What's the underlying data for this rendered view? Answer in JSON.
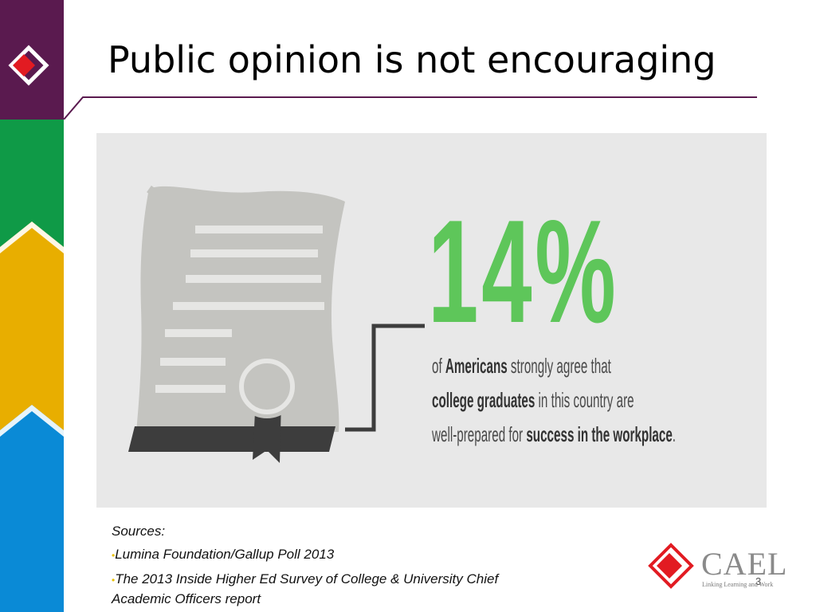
{
  "slide": {
    "title": "Public opinion is not encouraging",
    "number": "3"
  },
  "infographic": {
    "percent": "14%",
    "statement": [
      {
        "text": "of ",
        "bold": false
      },
      {
        "text": "Americans",
        "bold": true
      },
      {
        "text": " strongly agree that",
        "bold": false
      },
      {
        "text": "\n",
        "bold": false
      },
      {
        "text": "college graduates",
        "bold": true
      },
      {
        "text": " in this country are",
        "bold": false
      },
      {
        "text": "\n",
        "bold": false
      },
      {
        "text": "well-prepared for ",
        "bold": false
      },
      {
        "text": "success in the workplace",
        "bold": true
      },
      {
        "text": ".",
        "bold": false
      }
    ],
    "icon": "diploma-scroll-icon"
  },
  "sources": {
    "heading": "Sources:",
    "items": [
      "Lumina Foundation/Gallup Poll 2013",
      "The 2013 Inside Higher Ed Survey of College & University Chief"
    ],
    "continuation": "Academic Officers report"
  },
  "logo": {
    "name": "CAEL",
    "tagline": "Linking Learning and Work"
  },
  "colors": {
    "purple": "#5a1a4f",
    "green": "#0f9a47",
    "yellow": "#e8ae00",
    "blue": "#0a8ad6",
    "accent_green": "#5ec65a",
    "red": "#e21b22"
  }
}
